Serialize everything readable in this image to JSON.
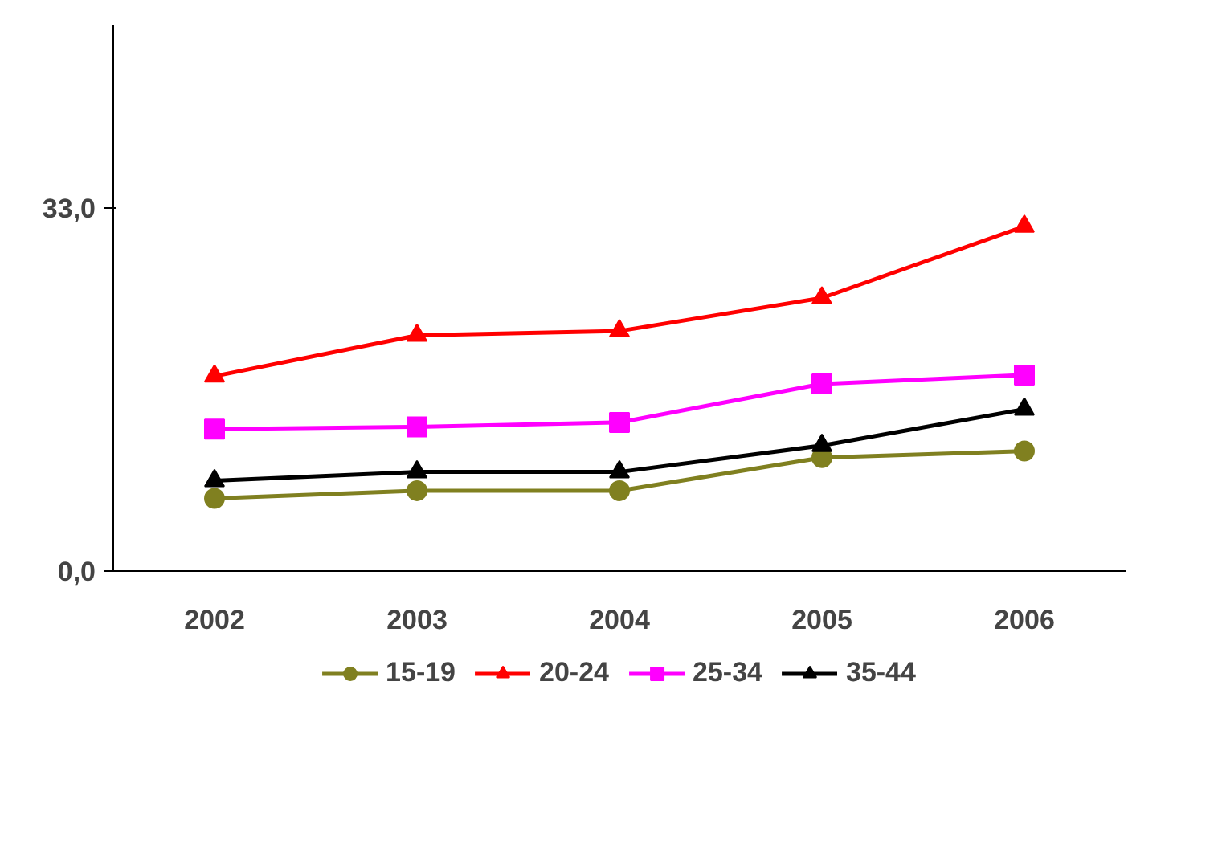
{
  "chart_data": {
    "type": "line",
    "categories": [
      "2002",
      "2003",
      "2004",
      "2005",
      "2006"
    ],
    "ylim": [
      0,
      49.6
    ],
    "yticks": [
      {
        "value": 0,
        "label": "0,0"
      },
      {
        "value": 33,
        "label": "33,0"
      }
    ],
    "legend": "bottom",
    "grid": false,
    "line_style": "solid",
    "series": [
      {
        "name": "15-19",
        "color": "#808020",
        "marker": "circle",
        "values": [
          6.6,
          7.3,
          7.3,
          10.3,
          10.9
        ]
      },
      {
        "name": "20-24",
        "color": "#ff0000",
        "marker": "triangle",
        "values": [
          17.7,
          21.4,
          21.8,
          24.8,
          31.3
        ]
      },
      {
        "name": "25-34",
        "color": "#ff00ff",
        "marker": "square",
        "values": [
          12.9,
          13.1,
          13.5,
          17.0,
          17.8
        ]
      },
      {
        "name": "35-44",
        "color": "#000000",
        "marker": "triangle",
        "values": [
          8.2,
          9.0,
          9.0,
          11.4,
          14.7
        ]
      }
    ]
  }
}
